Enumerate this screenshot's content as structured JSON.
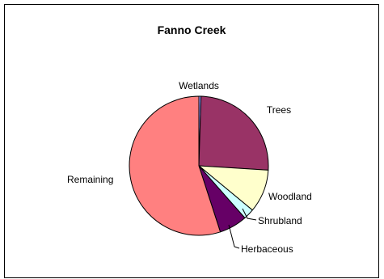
{
  "chart_data": {
    "type": "pie",
    "title": "Fanno Creek",
    "start_angle_deg": 0,
    "direction": "clockwise",
    "slices": [
      {
        "label": "Wetlands",
        "value": 0.5,
        "color": "#9999ff"
      },
      {
        "label": "Trees",
        "value": 25.5,
        "color": "#993366"
      },
      {
        "label": "Woodland",
        "value": 10,
        "color": "#ffffcc"
      },
      {
        "label": "Shrubland",
        "value": 2.5,
        "color": "#ccffff"
      },
      {
        "label": "Herbaceous",
        "value": 6.5,
        "color": "#660066"
      },
      {
        "label": "Remaining",
        "value": 55,
        "color": "#ff8080"
      }
    ]
  }
}
